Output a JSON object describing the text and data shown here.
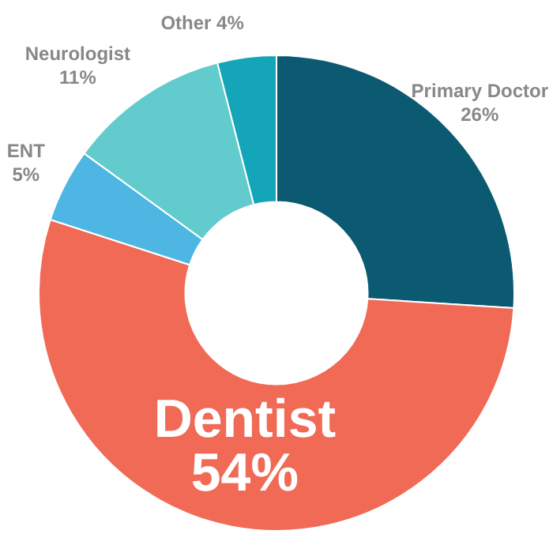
{
  "chart_data": {
    "type": "donut",
    "categories": [
      "Primary Doctor",
      "Dentist",
      "ENT",
      "Neurologist",
      "Other"
    ],
    "values": [
      26,
      54,
      5,
      11,
      4
    ],
    "value_labels": [
      "26%",
      "54%",
      "5%",
      "11%",
      "4%"
    ],
    "colors": [
      "#0c5a72",
      "#f06a56",
      "#4db6e2",
      "#62cbcd",
      "#14a6b8"
    ],
    "legend": false
  }
}
